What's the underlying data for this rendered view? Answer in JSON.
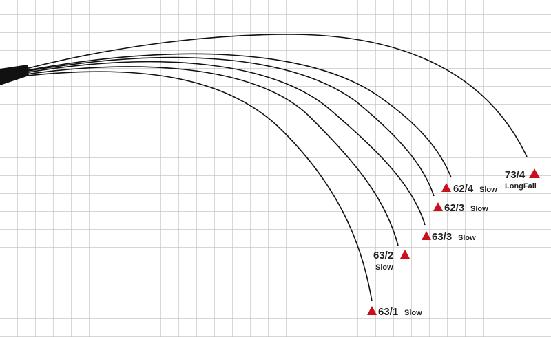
{
  "rods": [
    {
      "model": "73/4",
      "action": "LongFall"
    },
    {
      "model": "62/4",
      "action": "Slow"
    },
    {
      "model": "62/3",
      "action": "Slow"
    },
    {
      "model": "63/3",
      "action": "Slow"
    },
    {
      "model": "63/2",
      "action": "Slow"
    },
    {
      "model": "63/1",
      "action": "Slow"
    }
  ]
}
